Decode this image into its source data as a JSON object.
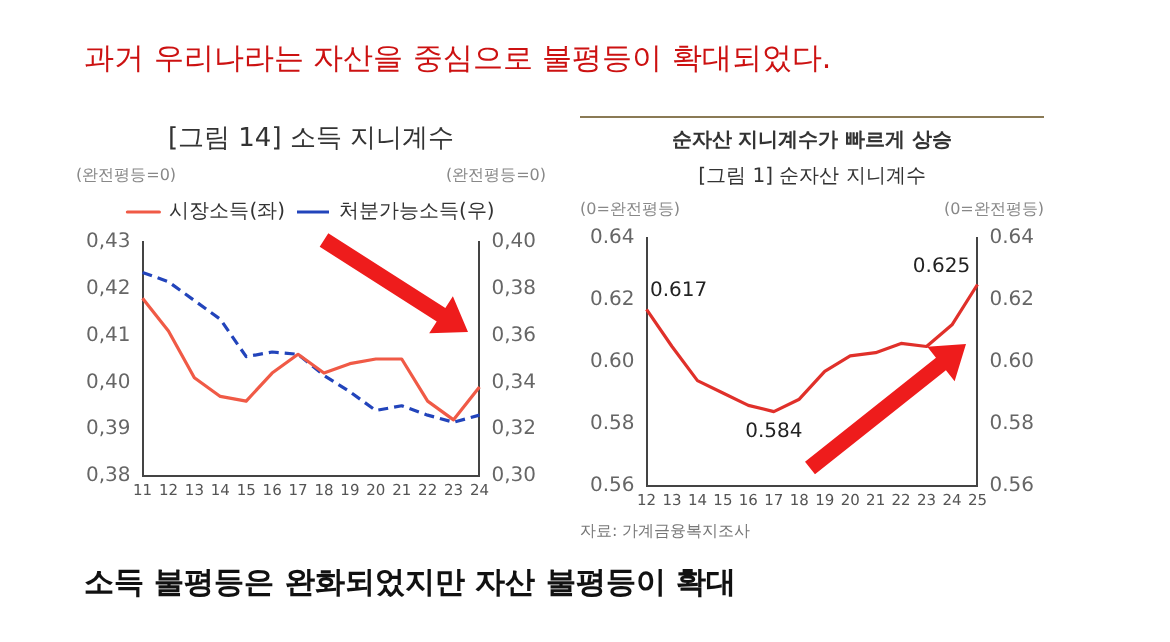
{
  "chart_data": [
    {
      "type": "other",
      "title": "과거 우리나라는 자산을 중심으로 불평등이 확대되었다.",
      "annotations": [
        "소득 불평등은 완화되었지만 자산 불평등이 확대"
      ]
    },
    {
      "type": "line",
      "title": "[그림 14] 소득 지니계수",
      "categories": [
        "11",
        "12",
        "13",
        "14",
        "15",
        "16",
        "17",
        "18",
        "19",
        "20",
        "21",
        "22",
        "23",
        "24"
      ],
      "series": [
        {
          "name": "시장소득(좌)",
          "color": "#f05a46",
          "line_style": "solid",
          "values": [
            0.418,
            0.411,
            0.401,
            0.397,
            0.396,
            0.402,
            0.406,
            0.402,
            0.404,
            0.405,
            0.405,
            0.396,
            0.392,
            0.399
          ]
        },
        {
          "name": "처분가능소득(우)",
          "color": "#2244bb",
          "line_style": "dashed",
          "axis": "y2",
          "values": [
            0.387,
            0.383,
            0.375,
            0.367,
            0.351,
            0.353,
            0.352,
            0.343,
            0.336,
            0.328,
            0.33,
            0.326,
            0.323,
            0.326
          ]
        }
      ],
      "ylim": [
        0.38,
        0.43
      ],
      "yticks": [
        {
          "value": 0.38,
          "label": "0,38"
        },
        {
          "value": 0.39,
          "label": "0,39"
        },
        {
          "value": 0.4,
          "label": "0,40"
        },
        {
          "value": 0.41,
          "label": "0,41"
        },
        {
          "value": 0.42,
          "label": "0,42"
        },
        {
          "value": 0.43,
          "label": "0,43"
        }
      ],
      "y2lim": [
        0.3,
        0.4
      ],
      "y2ticks": [
        {
          "value": 0.3,
          "label": "0,30"
        },
        {
          "value": 0.32,
          "label": "0,32"
        },
        {
          "value": 0.34,
          "label": "0,34"
        },
        {
          "value": 0.36,
          "label": "0,36"
        },
        {
          "value": 0.38,
          "label": "0,38"
        },
        {
          "value": 0.4,
          "label": "0,40"
        }
      ],
      "annotations": [
        "(완전평등=0)",
        "(완전평등=0)"
      ],
      "legend": "top",
      "grid": false,
      "marker": "none"
    },
    {
      "type": "line",
      "subtitle": "순자산 지니계수가 빠르게 상승",
      "title": "[그림 1] 순자산 지니계수",
      "categories": [
        "12",
        "13",
        "14",
        "15",
        "16",
        "17",
        "18",
        "19",
        "20",
        "21",
        "22",
        "23",
        "24",
        "25"
      ],
      "series": [
        {
          "color": "#e0302a",
          "line_style": "solid",
          "values": [
            0.617,
            0.605,
            0.594,
            0.59,
            0.586,
            0.584,
            0.588,
            0.597,
            0.602,
            0.603,
            0.606,
            0.605,
            0.612,
            0.625
          ],
          "value_labels": [
            "0.617",
            null,
            null,
            null,
            null,
            "0.584",
            null,
            null,
            null,
            null,
            null,
            null,
            null,
            "0.625"
          ]
        }
      ],
      "ylim": [
        0.56,
        0.64
      ],
      "yticks": [
        {
          "value": 0.56,
          "label": "0.56"
        },
        {
          "value": 0.58,
          "label": "0.58"
        },
        {
          "value": 0.6,
          "label": "0.60"
        },
        {
          "value": 0.62,
          "label": "0.62"
        },
        {
          "value": 0.64,
          "label": "0.64"
        }
      ],
      "y2lim": [
        0.56,
        0.64
      ],
      "y2ticks": [
        {
          "value": 0.56,
          "label": "0.56"
        },
        {
          "value": 0.58,
          "label": "0.58"
        },
        {
          "value": 0.6,
          "label": "0.60"
        },
        {
          "value": 0.62,
          "label": "0.62"
        },
        {
          "value": 0.64,
          "label": "0.64"
        }
      ],
      "annotations": [
        "(0=완전평등)",
        "(0=완전평등)",
        "자료: 가계금융복지조사"
      ],
      "legend": false,
      "grid": false,
      "marker": "none"
    }
  ]
}
